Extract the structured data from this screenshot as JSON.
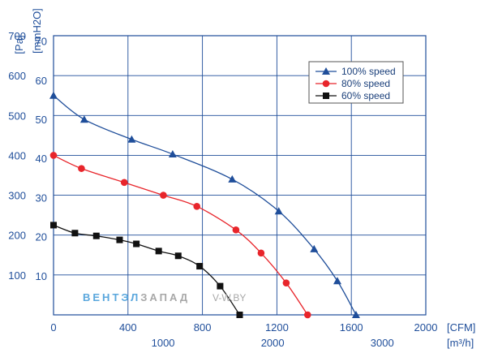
{
  "chart_data": {
    "type": "line",
    "title": "",
    "x_axis": {
      "unit_label": "[CFM]",
      "range": [
        0,
        2000
      ],
      "ticks": [
        0,
        400,
        800,
        1200,
        1600,
        2000
      ],
      "tick_labels": [
        "0",
        "400",
        "800",
        "1200",
        "1600",
        "2000"
      ]
    },
    "x_axis_secondary": {
      "unit_label": "[m³/h]",
      "tick_values_cfm": [
        588.6,
        1177.2,
        1765.7
      ],
      "tick_labels": [
        "1000",
        "2000",
        "3000"
      ]
    },
    "y_axis": {
      "unit_label": "[Pa]",
      "range": [
        0,
        700
      ],
      "ticks": [
        100,
        200,
        300,
        400,
        500,
        600,
        700
      ],
      "tick_labels": [
        "100",
        "200",
        "300",
        "400",
        "500",
        "600",
        "700"
      ]
    },
    "y_axis_secondary": {
      "unit_label": "[mmH2O]",
      "tick_values_pa": [
        98.1,
        196.1,
        294.2,
        392.3,
        490.3,
        588.4,
        686.5
      ],
      "tick_labels": [
        "10",
        "20",
        "30",
        "40",
        "50",
        "60",
        "70"
      ]
    },
    "grid": true,
    "legend_position": "top-right",
    "series": [
      {
        "name": "100% speed",
        "color": "#1f4e9a",
        "marker": "triangle",
        "x": [
          0,
          165,
          420,
          640,
          960,
          1210,
          1400,
          1525,
          1625
        ],
        "y": [
          550,
          490,
          440,
          403,
          340,
          260,
          165,
          85,
          0
        ]
      },
      {
        "name": "80% speed",
        "color": "#e8252b",
        "marker": "circle",
        "x": [
          0,
          150,
          380,
          590,
          770,
          980,
          1115,
          1250,
          1365
        ],
        "y": [
          400,
          367,
          332,
          300,
          272,
          213,
          155,
          80,
          0
        ]
      },
      {
        "name": "60% speed",
        "color": "#111111",
        "marker": "square",
        "x": [
          0,
          115,
          230,
          355,
          445,
          565,
          670,
          785,
          895,
          1000
        ],
        "y": [
          225,
          205,
          198,
          188,
          178,
          160,
          148,
          122,
          72,
          0
        ]
      }
    ]
  },
  "watermark": {
    "part1": "ВЕНТЭЛ",
    "part2": "ЗАПАД",
    "part3": "V-W.BY",
    "color1": "#5aa7dd",
    "color2": "#a8a8a8"
  }
}
